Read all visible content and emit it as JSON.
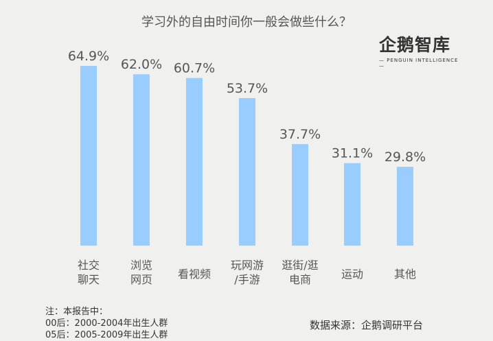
{
  "chart_data": {
    "type": "bar",
    "title": "学习外的自由时间你一般会做些什么？",
    "categories": [
      [
        "社交",
        "聊天"
      ],
      [
        "浏览",
        "网页"
      ],
      [
        "看视频"
      ],
      [
        "玩网游",
        "/手游"
      ],
      [
        "逛街/逛",
        "电商"
      ],
      [
        "运动"
      ],
      [
        "其他"
      ]
    ],
    "values": [
      64.9,
      62.0,
      60.7,
      53.7,
      37.7,
      31.1,
      29.8
    ],
    "value_labels": [
      "64.9%",
      "62.0%",
      "60.7%",
      "53.7%",
      "37.7%",
      "31.1%",
      "29.8%"
    ],
    "unit": "%",
    "bar_color": "#99ccff",
    "grid": false
  },
  "logo": {
    "text": "企鹅智库",
    "subtitle": "— PENGUIN INTELLIGENCE —"
  },
  "notes": [
    "注：本报告中：",
    "00后：2000-2004年出生人群",
    "05后：2005-2009年出生人群"
  ],
  "source": "数据来源：企鹅调研平台"
}
